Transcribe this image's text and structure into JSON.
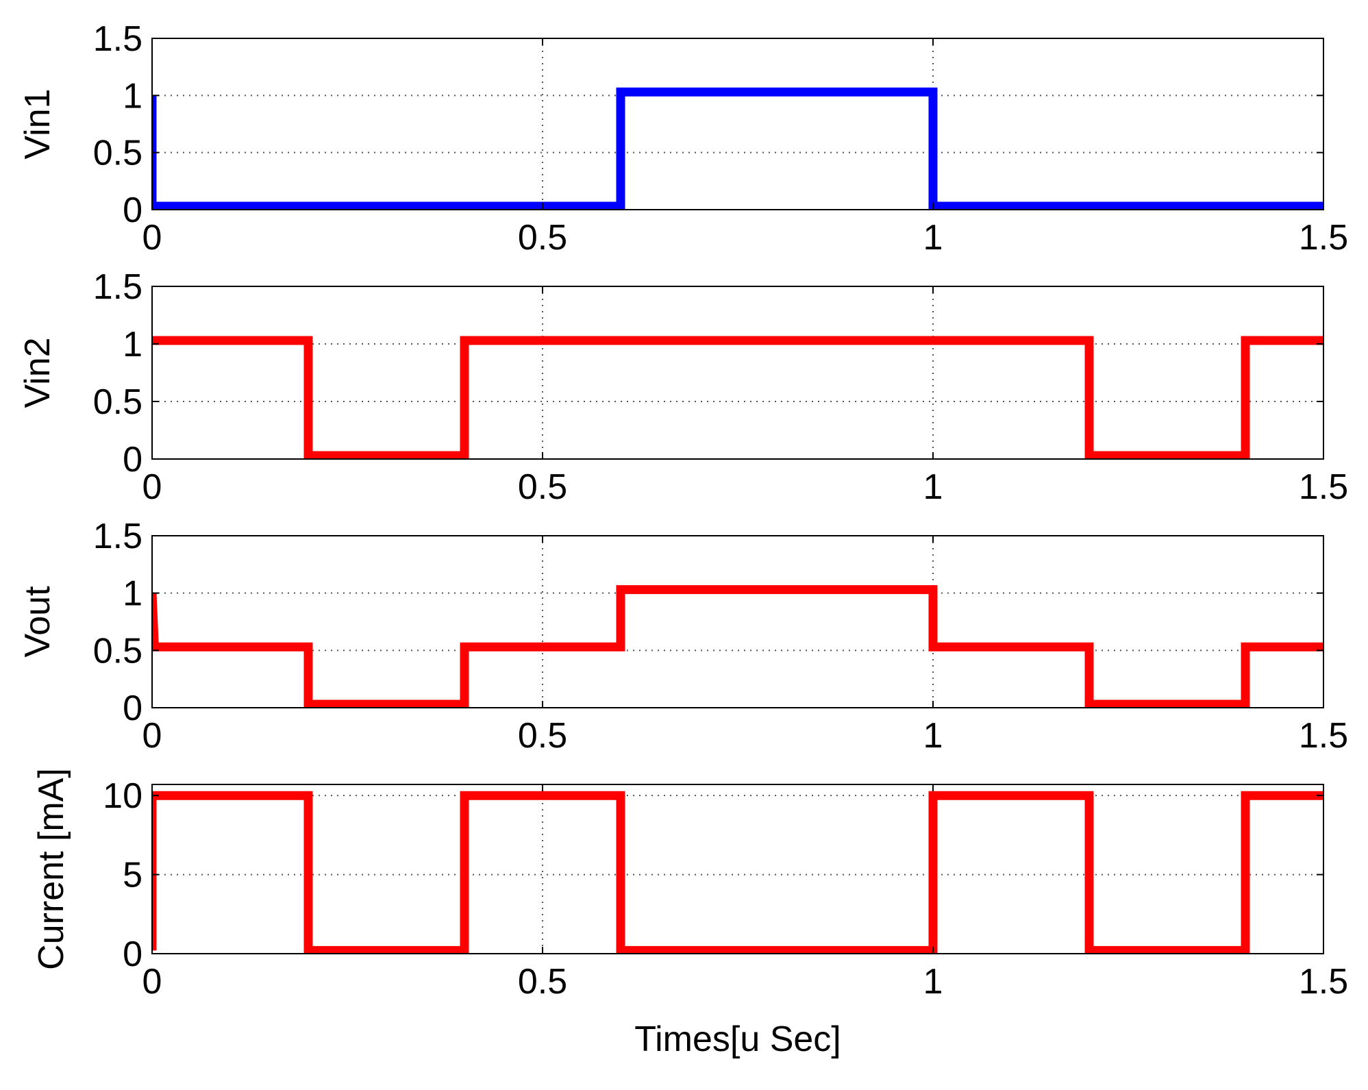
{
  "chart_data": [
    {
      "type": "line",
      "ylabel": "Vin1",
      "xlabel": "",
      "xlim": [
        0,
        1.5
      ],
      "ylim": [
        0,
        1.5
      ],
      "xticks": [
        "0",
        "0.5",
        "1",
        "1.5"
      ],
      "yticks": [
        "0",
        "0.5",
        "1",
        "1.5"
      ],
      "xtick_values": [
        0,
        0.5,
        1,
        1.5
      ],
      "ytick_values": [
        0,
        0.5,
        1,
        1.5
      ],
      "grid": true,
      "color": "#0000ff",
      "series": [
        {
          "x": [
            0,
            0,
            0.002,
            0.6,
            0.6,
            1.0,
            1.0,
            1.5
          ],
          "y": [
            1,
            0.03,
            0.03,
            0.03,
            1.03,
            1.03,
            0.03,
            0.03
          ]
        }
      ]
    },
    {
      "type": "line",
      "ylabel": "Vin2",
      "xlabel": "",
      "xlim": [
        0,
        1.5
      ],
      "ylim": [
        0,
        1.5
      ],
      "xticks": [
        "0",
        "0.5",
        "1",
        "1.5"
      ],
      "yticks": [
        "0",
        "0.5",
        "1",
        "1.5"
      ],
      "xtick_values": [
        0,
        0.5,
        1,
        1.5
      ],
      "ytick_values": [
        0,
        0.5,
        1,
        1.5
      ],
      "grid": true,
      "color": "#ff0000",
      "series": [
        {
          "x": [
            0,
            0.2,
            0.2,
            0.4,
            0.4,
            1.2,
            1.2,
            1.4,
            1.4,
            1.5
          ],
          "y": [
            1.03,
            1.03,
            0.03,
            0.03,
            1.03,
            1.03,
            0.03,
            0.03,
            1.03,
            1.03
          ]
        }
      ]
    },
    {
      "type": "line",
      "ylabel": "Vout",
      "xlabel": "",
      "xlim": [
        0,
        1.5
      ],
      "ylim": [
        0,
        1.5
      ],
      "xticks": [
        "0",
        "0.5",
        "1",
        "1.5"
      ],
      "yticks": [
        "0",
        "0.5",
        "1",
        "1.5"
      ],
      "xtick_values": [
        0,
        0.5,
        1,
        1.5
      ],
      "ytick_values": [
        0,
        0.5,
        1,
        1.5
      ],
      "grid": true,
      "color": "#ff0000",
      "series": [
        {
          "x": [
            0,
            0.003,
            0.2,
            0.2,
            0.4,
            0.4,
            0.6,
            0.6,
            1.0,
            1.0,
            1.2,
            1.2,
            1.4,
            1.4,
            1.5
          ],
          "y": [
            1,
            0.53,
            0.53,
            0.03,
            0.03,
            0.53,
            0.53,
            1.03,
            1.03,
            0.53,
            0.53,
            0.03,
            0.03,
            0.53,
            0.53
          ]
        }
      ]
    },
    {
      "type": "line",
      "ylabel": "Current [mA]",
      "xlabel": "Times[u Sec]",
      "xlim": [
        0,
        1.5
      ],
      "ylim": [
        0,
        10.7
      ],
      "xticks": [
        "0",
        "0.5",
        "1",
        "1.5"
      ],
      "yticks": [
        "0",
        "5",
        "10"
      ],
      "xtick_values": [
        0,
        0.5,
        1,
        1.5
      ],
      "ytick_values": [
        0,
        5,
        10
      ],
      "grid": true,
      "color": "#ff0000",
      "series": [
        {
          "x": [
            0,
            0,
            0.2,
            0.2,
            0.4,
            0.4,
            0.6,
            0.6,
            1.0,
            1.0,
            1.2,
            1.2,
            1.4,
            1.4,
            1.5
          ],
          "y": [
            0.2,
            10,
            10,
            0.2,
            0.2,
            10,
            10,
            0.2,
            0.2,
            10,
            10,
            0.2,
            0.2,
            10,
            10
          ]
        }
      ]
    }
  ]
}
